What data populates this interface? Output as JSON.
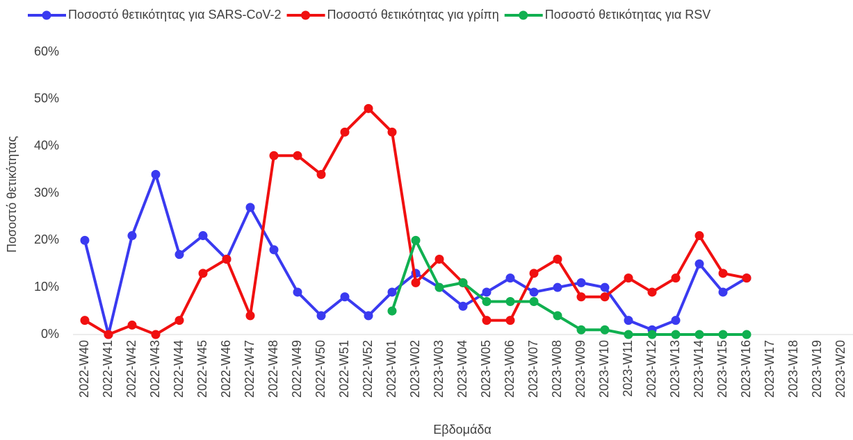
{
  "chart_data": {
    "type": "line",
    "y_label": "Ποσοστό θετικότητας",
    "x_label": "Εβδομάδα",
    "legend": "top",
    "grid": false,
    "categories": [
      "2022-W40",
      "2022-W41",
      "2022-W42",
      "2022-W43",
      "2022-W44",
      "2022-W45",
      "2022-W46",
      "2022-W47",
      "2022-W48",
      "2022-W49",
      "2022-W50",
      "2022-W51",
      "2022-W52",
      "2023-W01",
      "2023-W02",
      "2023-W03",
      "2023-W04",
      "2023-W05",
      "2023-W06",
      "2023-W07",
      "2023-W08",
      "2023-W09",
      "2023-W10",
      "2023-W11",
      "2023-W12",
      "2023-W13",
      "2023-W14",
      "2023-W15",
      "2023-W16",
      "2023-W17",
      "2023-W18",
      "2023-W19",
      "2023-W20"
    ],
    "series": [
      {
        "name": "Ποσοστό θετικότητας για SARS-CoV-2",
        "color": "#3a3af0",
        "values": [
          20,
          0,
          21,
          34,
          17,
          21,
          16,
          27,
          18,
          9,
          4,
          8,
          4,
          9,
          13,
          10,
          6,
          9,
          12,
          9,
          10,
          11,
          10,
          3,
          1,
          3,
          15,
          9,
          12,
          null,
          null,
          null,
          null
        ]
      },
      {
        "name": "Ποσοστό θετικότητας για γρίπη",
        "color": "#f01010",
        "values": [
          3,
          0,
          2,
          0,
          3,
          13,
          16,
          4,
          38,
          38,
          34,
          43,
          48,
          43,
          11,
          16,
          11,
          3,
          3,
          13,
          16,
          8,
          8,
          12,
          9,
          12,
          21,
          13,
          12,
          null,
          null,
          null,
          null
        ]
      },
      {
        "name": "Ποσοστό θετικότητας για RSV",
        "color": "#10b050",
        "values": [
          null,
          null,
          null,
          null,
          null,
          null,
          null,
          null,
          null,
          null,
          null,
          null,
          null,
          5,
          20,
          10,
          11,
          7,
          7,
          7,
          4,
          1,
          1,
          0,
          0,
          0,
          0,
          0,
          0,
          null,
          null,
          null,
          null
        ]
      }
    ],
    "ylim": [
      0,
      60
    ],
    "yticks": [
      {
        "value": 0,
        "label": "0%"
      },
      {
        "value": 10,
        "label": "10%"
      },
      {
        "value": 20,
        "label": "20%"
      },
      {
        "value": 30,
        "label": "30%"
      },
      {
        "value": 40,
        "label": "40%"
      },
      {
        "value": 50,
        "label": "50%"
      },
      {
        "value": 60,
        "label": "60%"
      }
    ]
  }
}
